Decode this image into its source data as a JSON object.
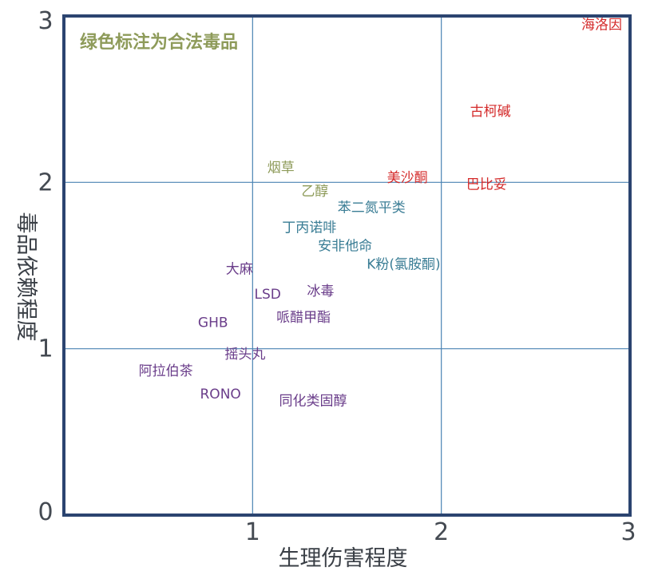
{
  "chart_data": {
    "type": "scatter",
    "title": "",
    "note": "绿色标注为合法毒品",
    "xlabel": "生理伤害程度",
    "ylabel": "毒品依赖程度",
    "xlim": [
      0,
      3
    ],
    "ylim": [
      0,
      3
    ],
    "xticks": [
      "1",
      "2",
      "3"
    ],
    "yticks": [
      "0",
      "1",
      "2",
      "3"
    ],
    "grid": true,
    "colors": {
      "legal": "#8e9b5a",
      "medium": "#3a7d95",
      "low": "#6a3d8a",
      "high": "#d42a2a",
      "frame": "#2b4470",
      "grid": "#4a83b3"
    },
    "points": [
      {
        "label": "海洛因",
        "x": 2.85,
        "y": 2.95,
        "group": "high"
      },
      {
        "label": "古柯碱",
        "x": 2.26,
        "y": 2.43,
        "group": "high"
      },
      {
        "label": "巴比妥",
        "x": 2.24,
        "y": 1.99,
        "group": "high"
      },
      {
        "label": "美沙酮",
        "x": 1.82,
        "y": 2.03,
        "group": "high"
      },
      {
        "label": "烟草",
        "x": 1.15,
        "y": 2.09,
        "group": "legal"
      },
      {
        "label": "乙醇",
        "x": 1.33,
        "y": 1.95,
        "group": "legal"
      },
      {
        "label": "苯二氮平类",
        "x": 1.63,
        "y": 1.85,
        "group": "medium"
      },
      {
        "label": "丁丙诺啡",
        "x": 1.3,
        "y": 1.73,
        "group": "medium"
      },
      {
        "label": "安非他命",
        "x": 1.49,
        "y": 1.62,
        "group": "medium"
      },
      {
        "label": "K粉(氯胺酮)",
        "x": 1.8,
        "y": 1.51,
        "group": "medium"
      },
      {
        "label": "大麻",
        "x": 0.93,
        "y": 1.48,
        "group": "low"
      },
      {
        "label": "冰毒",
        "x": 1.36,
        "y": 1.35,
        "group": "low"
      },
      {
        "label": "LSD",
        "x": 1.08,
        "y": 1.33,
        "group": "low"
      },
      {
        "label": "哌醋甲酯",
        "x": 1.27,
        "y": 1.19,
        "group": "low"
      },
      {
        "label": "GHB",
        "x": 0.79,
        "y": 1.16,
        "group": "low"
      },
      {
        "label": "摇头丸",
        "x": 0.96,
        "y": 0.97,
        "group": "low"
      },
      {
        "label": "阿拉伯茶",
        "x": 0.54,
        "y": 0.87,
        "group": "low"
      },
      {
        "label": "RONO",
        "x": 0.83,
        "y": 0.73,
        "group": "low"
      },
      {
        "label": "同化类固醇",
        "x": 1.32,
        "y": 0.69,
        "group": "low"
      }
    ]
  }
}
